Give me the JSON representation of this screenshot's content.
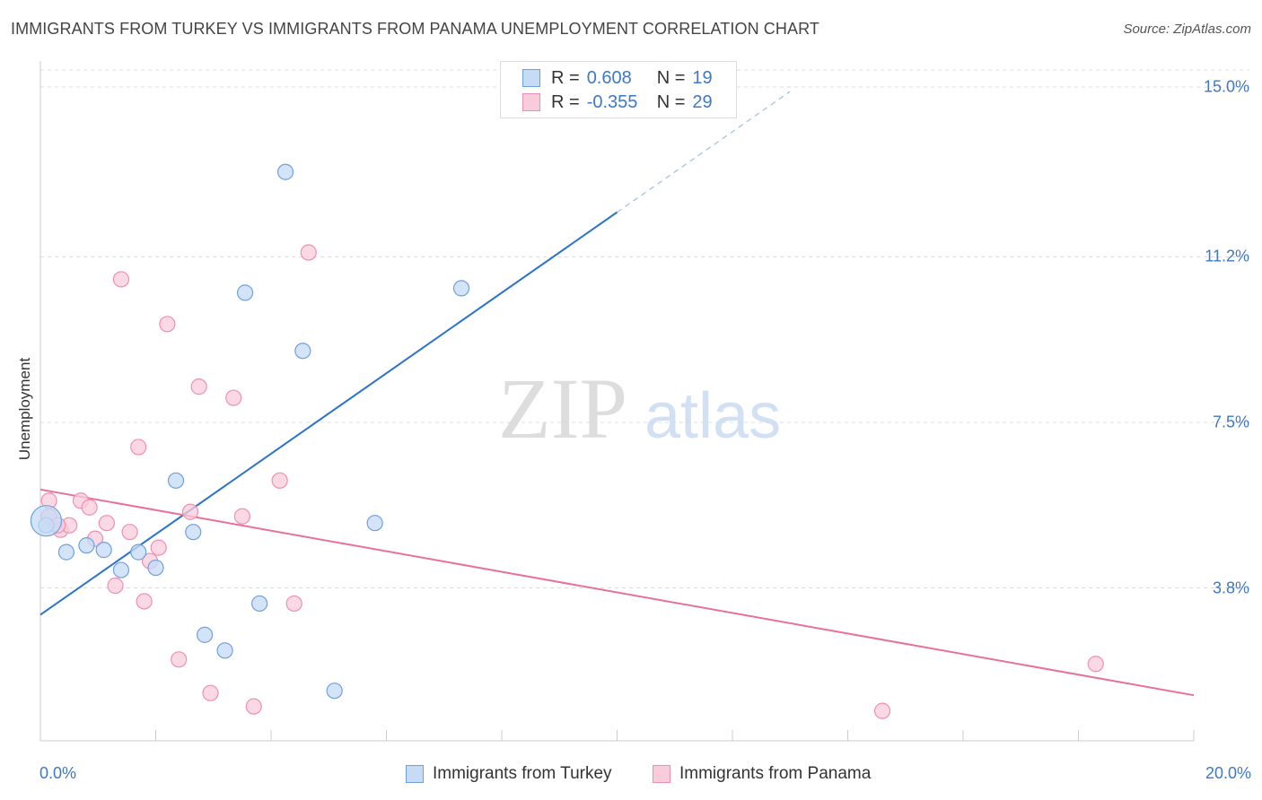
{
  "header": {
    "title": "IMMIGRANTS FROM TURKEY VS IMMIGRANTS FROM PANAMA UNEMPLOYMENT CORRELATION CHART",
    "source": "Source: ZipAtlas.com"
  },
  "watermark": {
    "zip": "ZIP",
    "atlas": "atlas"
  },
  "legend_top": {
    "rows": [
      {
        "r_label": "R =",
        "r_value": "0.608",
        "n_label": "N =",
        "n_value": "19"
      },
      {
        "r_label": "R =",
        "r_value": "-0.355",
        "n_label": "N =",
        "n_value": "29"
      }
    ]
  },
  "colors": {
    "turkey": "#6fa0df",
    "turkey_fill": "#c6dbf5",
    "turkey_line": "#2b74c9",
    "panama": "#ef8fb0",
    "panama_fill": "#f9ccdb",
    "panama_line": "#e8709a",
    "tick_text": "#3d78c9"
  },
  "chart_data": {
    "type": "scatter",
    "title": "IMMIGRANTS FROM TURKEY VS IMMIGRANTS FROM PANAMA UNEMPLOYMENT CORRELATION CHART",
    "xlabel": "",
    "ylabel": "Unemployment",
    "xlim": [
      0,
      20
    ],
    "ylim": [
      0,
      15.0
    ],
    "x_tick_labels": [
      "0.0%",
      "20.0%"
    ],
    "y_ticks": [
      3.8,
      7.5,
      11.2,
      15.0
    ],
    "y_tick_labels": [
      "3.8%",
      "7.5%",
      "11.2%",
      "15.0%"
    ],
    "grid": true,
    "legend_placement": "bottom",
    "series": [
      {
        "name": "Immigrants from Turkey",
        "r": 0.608,
        "n": 19,
        "points": [
          [
            0.1,
            5.2
          ],
          [
            0.45,
            4.6
          ],
          [
            0.8,
            4.75
          ],
          [
            1.1,
            4.65
          ],
          [
            1.4,
            4.2
          ],
          [
            1.7,
            4.6
          ],
          [
            2.0,
            4.25
          ],
          [
            2.35,
            6.2
          ],
          [
            2.65,
            5.05
          ],
          [
            2.85,
            2.75
          ],
          [
            3.2,
            2.4
          ],
          [
            3.55,
            10.4
          ],
          [
            3.8,
            3.45
          ],
          [
            4.25,
            13.1
          ],
          [
            4.55,
            9.1
          ],
          [
            5.1,
            1.5
          ],
          [
            5.8,
            5.25
          ],
          [
            7.3,
            10.5
          ],
          [
            0.1,
            5.3
          ]
        ],
        "trend": {
          "x0": 0,
          "y0": 3.2,
          "x1": 10.0,
          "y1": 12.2,
          "dash_to_x": 13.0
        }
      },
      {
        "name": "Immigrants from Panama",
        "r": -0.355,
        "n": 29,
        "points": [
          [
            0.15,
            5.75
          ],
          [
            0.35,
            5.1
          ],
          [
            0.5,
            5.2
          ],
          [
            0.7,
            5.75
          ],
          [
            0.85,
            5.6
          ],
          [
            0.95,
            4.9
          ],
          [
            1.15,
            5.25
          ],
          [
            1.3,
            3.85
          ],
          [
            1.4,
            10.7
          ],
          [
            1.55,
            5.05
          ],
          [
            1.7,
            6.95
          ],
          [
            1.8,
            3.5
          ],
          [
            1.9,
            4.4
          ],
          [
            2.05,
            4.7
          ],
          [
            2.2,
            9.7
          ],
          [
            2.4,
            2.2
          ],
          [
            2.6,
            5.5
          ],
          [
            2.75,
            8.3
          ],
          [
            2.95,
            1.45
          ],
          [
            3.35,
            8.05
          ],
          [
            3.5,
            5.4
          ],
          [
            3.7,
            1.15
          ],
          [
            4.15,
            6.2
          ],
          [
            4.4,
            3.45
          ],
          [
            4.65,
            11.3
          ],
          [
            14.6,
            1.05
          ],
          [
            18.3,
            2.1
          ],
          [
            0.15,
            5.4
          ],
          [
            0.3,
            5.2
          ]
        ],
        "trend": {
          "x0": 0,
          "y0": 6.0,
          "x1": 20,
          "y1": 1.4
        }
      }
    ]
  }
}
